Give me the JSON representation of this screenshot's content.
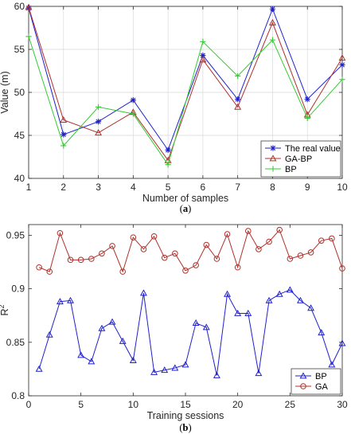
{
  "chart_data": [
    {
      "type": "line",
      "caption_open": "(",
      "caption_letter": "a",
      "caption_close": ")",
      "xlabel": "Number of samples",
      "ylabel": "Value (m)",
      "x": [
        1,
        2,
        3,
        4,
        5,
        6,
        7,
        8,
        9,
        10
      ],
      "xlim": [
        1,
        10
      ],
      "ylim": [
        40,
        60
      ],
      "xticks": [
        "1",
        "2",
        "3",
        "4",
        "5",
        "6",
        "7",
        "8",
        "9",
        "10"
      ],
      "yticks": [
        "40",
        "45",
        "50",
        "55",
        "60"
      ],
      "legend_position": "bottom-right",
      "grid": true,
      "series": [
        {
          "name": "The real value",
          "color": "#1f1fcf",
          "marker": "star",
          "values": [
            59.8,
            45.1,
            46.6,
            49.1,
            43.3,
            54.3,
            49.2,
            59.7,
            49.2,
            53.2
          ]
        },
        {
          "name": "GA-BP",
          "color": "#b0302a",
          "marker": "triangle",
          "values": [
            59.9,
            46.8,
            45.3,
            47.7,
            42.1,
            53.8,
            48.3,
            58.1,
            47.4,
            54.0
          ]
        },
        {
          "name": "BP",
          "color": "#33cc33",
          "marker": "plus",
          "values": [
            56.5,
            43.8,
            48.3,
            47.5,
            41.6,
            55.9,
            51.9,
            56.1,
            47.0,
            51.5
          ]
        }
      ]
    },
    {
      "type": "line",
      "caption_open": "(",
      "caption_letter": "b",
      "caption_close": ")",
      "xlabel": "Training sessions",
      "ylabel_base": "R",
      "ylabel_sup": "2",
      "x": [
        1,
        2,
        3,
        4,
        5,
        6,
        7,
        8,
        9,
        10,
        11,
        12,
        13,
        14,
        15,
        16,
        17,
        18,
        19,
        20,
        21,
        22,
        23,
        24,
        25,
        26,
        27,
        28,
        29,
        30
      ],
      "xlim": [
        0,
        30
      ],
      "ylim": [
        0.8,
        0.96
      ],
      "xticks": [
        "0",
        "5",
        "10",
        "15",
        "20",
        "25",
        "30"
      ],
      "yticks": [
        "0.8",
        "0.85",
        "0.9",
        "0.95"
      ],
      "legend_position": "bottom-right",
      "grid": false,
      "series": [
        {
          "name": "BP",
          "color": "#1f1fcf",
          "marker": "triangle",
          "values": [
            0.825,
            0.857,
            0.888,
            0.889,
            0.838,
            0.832,
            0.863,
            0.869,
            0.851,
            0.833,
            0.896,
            0.822,
            0.824,
            0.826,
            0.829,
            0.868,
            0.864,
            0.819,
            0.895,
            0.877,
            0.877,
            0.821,
            0.889,
            0.895,
            0.899,
            0.889,
            0.882,
            0.859,
            0.829,
            0.849
          ]
        },
        {
          "name": "GA",
          "color": "#b0302a",
          "marker": "circle",
          "values": [
            0.92,
            0.916,
            0.952,
            0.927,
            0.927,
            0.928,
            0.933,
            0.94,
            0.916,
            0.948,
            0.937,
            0.949,
            0.929,
            0.933,
            0.917,
            0.922,
            0.941,
            0.928,
            0.951,
            0.92,
            0.954,
            0.937,
            0.944,
            0.955,
            0.928,
            0.931,
            0.934,
            0.945,
            0.947,
            0.919
          ]
        }
      ]
    }
  ]
}
